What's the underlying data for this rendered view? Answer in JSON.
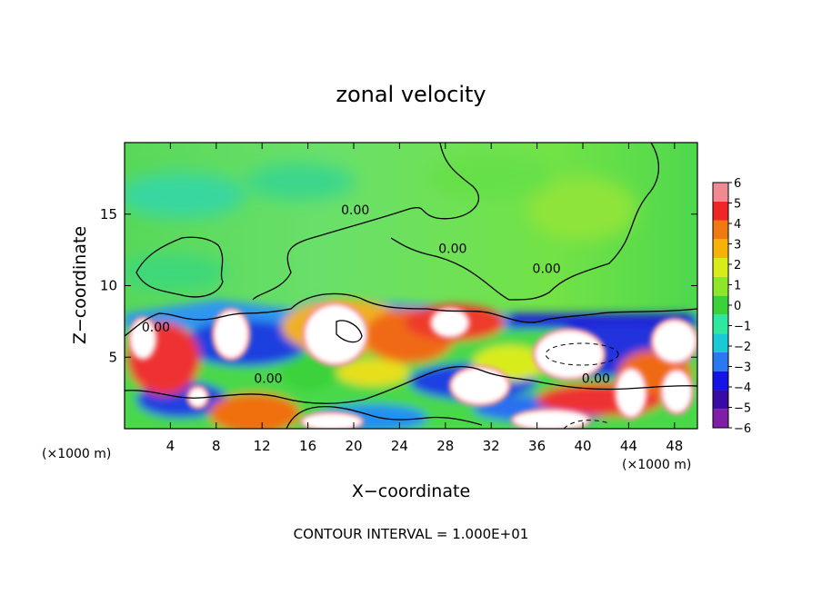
{
  "chart_data": {
    "type": "heatmap",
    "title": "zonal velocity",
    "xlabel": "X−coordinate",
    "ylabel": "Z−coordinate",
    "x_scale_label": "(×1000 m)",
    "y_scale_label": "(×1000 m)",
    "xlim": [
      0,
      50
    ],
    "ylim": [
      0,
      20
    ],
    "x_ticks": [
      4,
      8,
      12,
      16,
      20,
      24,
      28,
      32,
      36,
      40,
      44,
      48
    ],
    "x_tick_labels": [
      "4",
      "8",
      "12",
      "16",
      "20",
      "24",
      "28",
      "32",
      "36",
      "40",
      "44",
      "48"
    ],
    "y_ticks": [
      5,
      10,
      15
    ],
    "y_tick_labels": [
      "5",
      "10",
      "15"
    ],
    "colorbar": {
      "min": -6,
      "max": 6,
      "tick_values": [
        6,
        5,
        4,
        3,
        2,
        1,
        0,
        -1,
        -2,
        -3,
        -4,
        -5,
        -6
      ],
      "tick_labels": [
        "6",
        "5",
        "4",
        "3",
        "2",
        "1",
        "0",
        "−1",
        "−2",
        "−3",
        "−4",
        "−5",
        "−6"
      ],
      "colors": [
        "#7f1fa8",
        "#3a0aa6",
        "#1414e6",
        "#2b79f0",
        "#19c9d6",
        "#2ee8a0",
        "#3ad23a",
        "#8ee62a",
        "#d8ec1a",
        "#f5b30a",
        "#f07a10",
        "#ee2626",
        "#f08a92"
      ]
    },
    "contour_labels": [
      {
        "text": "0.00",
        "x": 18.9,
        "y": 15.0
      },
      {
        "text": "0.00",
        "x": 27.4,
        "y": 12.3
      },
      {
        "text": "0.00",
        "x": 35.6,
        "y": 10.9
      },
      {
        "text": "0.00",
        "x": 11.3,
        "y": 3.2
      },
      {
        "text": "0.00",
        "x": 39.9,
        "y": 3.2
      },
      {
        "text": "0.00",
        "x": 1.5,
        "y": 6.8
      }
    ],
    "white_regions": [
      {
        "cx": 9.3,
        "cy": 6.6,
        "rx": 1.4,
        "ry": 1.6
      },
      {
        "cx": 18.4,
        "cy": 6.6,
        "rx": 2.6,
        "ry": 2.0
      },
      {
        "cx": 28.4,
        "cy": 7.4,
        "rx": 1.5,
        "ry": 0.9
      },
      {
        "cx": 31.0,
        "cy": 3.0,
        "rx": 2.4,
        "ry": 1.2
      },
      {
        "cx": 38.8,
        "cy": 5.2,
        "rx": 2.9,
        "ry": 1.6
      },
      {
        "cx": 44.2,
        "cy": 2.5,
        "rx": 1.2,
        "ry": 1.6
      },
      {
        "cx": 48.0,
        "cy": 6.1,
        "rx": 1.8,
        "ry": 1.4
      },
      {
        "cx": 48.2,
        "cy": 2.6,
        "rx": 1.2,
        "ry": 1.4
      },
      {
        "cx": 1.6,
        "cy": 6.3,
        "rx": 1.0,
        "ry": 1.3
      },
      {
        "cx": 6.4,
        "cy": 2.2,
        "rx": 0.7,
        "ry": 0.6
      },
      {
        "cx": 18.1,
        "cy": 0.5,
        "rx": 2.5,
        "ry": 0.5
      },
      {
        "cx": 37.2,
        "cy": 0.6,
        "rx": 3.2,
        "ry": 0.6
      }
    ],
    "footer": "CONTOUR INTERVAL = 1.000E+01"
  }
}
